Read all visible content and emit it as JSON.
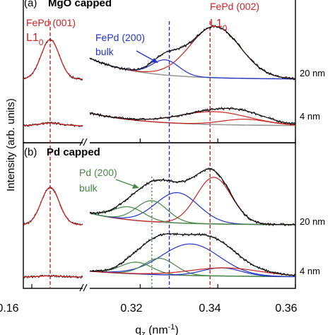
{
  "chart_data": {
    "type": "line",
    "xlabel_main": "q",
    "xlabel_sub": "z",
    "xlabel_unit_open": " (nm",
    "xlabel_unit_exp": "-1",
    "xlabel_unit_close": ")",
    "ylabel": "Intensity (arb. units)",
    "x_ticks": [
      "0.16",
      "0.32",
      "0.34",
      "0.36"
    ],
    "left_xlim": [
      0.157,
      0.178
    ],
    "right_xlim": [
      0.307,
      0.36
    ],
    "right_x_ticks": [
      0.32,
      0.34,
      0.36
    ],
    "guide_lines": [
      {
        "panel": "both",
        "x": 0.1665,
        "color": "#cc2222"
      },
      {
        "panel": "both",
        "x": 0.338,
        "color": "#cc2222"
      },
      {
        "panel": "both",
        "x": 0.3275,
        "color": "#2233cc"
      },
      {
        "panel": "b",
        "x": 0.323,
        "color": "#448844"
      }
    ],
    "panels": [
      {
        "label": "(a)",
        "title": "MgO capped",
        "annotations": {
          "fepd001_line1": "FePd (001)",
          "fepd001_line2": "L1",
          "fepd001_sub": "0",
          "fepd002_line1": "FePd (002)",
          "fepd002_line2": "L1",
          "fepd002_sub": "0",
          "fepd200_line1": "FePd (200)",
          "fepd200_line2": "bulk"
        },
        "thickness_labels": [
          "20 nm",
          "4 nm"
        ],
        "traces": [
          {
            "name": "20 nm",
            "offset": 1.0,
            "left_peak": {
              "center": 0.1665,
              "height": 1.7,
              "width": 0.0032
            },
            "right_peaks": [
              {
                "color": "#cc2222",
                "center": 0.3393,
                "height": 2.2,
                "width": 0.0065
              },
              {
                "color": "#2233cc",
                "center": 0.3265,
                "height": 0.65,
                "width": 0.0035
              }
            ],
            "background": {
              "start": 0.9,
              "decay": 0.012
            }
          },
          {
            "name": "4 nm",
            "offset": 0.0,
            "left_peak": {
              "center": 0.1665,
              "height": 0.12,
              "width": 0.004
            },
            "right_peaks": [
              {
                "color": "#cc2222",
                "center": 0.339,
                "height": 0.55,
                "width": 0.009
              },
              {
                "color": "#cc2222",
                "center": 0.347,
                "height": 0.25,
                "width": 0.006
              }
            ],
            "background": {
              "start": 0.55,
              "decay": 0.014
            }
          }
        ]
      },
      {
        "label": "(b)",
        "title": "Pd capped",
        "annotations": {
          "pd200_line1": "Pd (200)",
          "pd200_line2": "bulk"
        },
        "thickness_labels": [
          "20 nm",
          "4 nm"
        ],
        "traces": [
          {
            "name": "20 nm",
            "offset": 1.0,
            "left_peak": {
              "center": 0.1665,
              "height": 1.6,
              "width": 0.0032
            },
            "right_peaks": [
              {
                "color": "#cc2222",
                "center": 0.339,
                "height": 2.0,
                "width": 0.0045
              },
              {
                "color": "#2233cc",
                "center": 0.3295,
                "height": 1.3,
                "width": 0.0055
              },
              {
                "color": "#448844",
                "center": 0.323,
                "height": 0.9,
                "width": 0.004
              },
              {
                "color": "#448844",
                "center": 0.317,
                "height": 0.55,
                "width": 0.004
              }
            ],
            "background": {
              "start": 0.5,
              "decay": 0.012
            }
          },
          {
            "name": "4 nm",
            "offset": 0.0,
            "left_peak": {
              "center": 0.1665,
              "height": 0.05,
              "width": 0.004
            },
            "right_peaks": [
              {
                "color": "#2233cc",
                "center": 0.333,
                "height": 1.35,
                "width": 0.0075
              },
              {
                "color": "#448844",
                "center": 0.325,
                "height": 0.7,
                "width": 0.004
              },
              {
                "color": "#448844",
                "center": 0.319,
                "height": 0.5,
                "width": 0.004
              },
              {
                "color": "#2233cc",
                "center": 0.341,
                "height": 0.35,
                "width": 0.005
              },
              {
                "color": "#cc2222",
                "center": 0.342,
                "height": 0.35,
                "width": 0.009
              }
            ],
            "background": {
              "start": 0.25,
              "decay": 0.02
            }
          }
        ]
      }
    ],
    "colors": {
      "data": "#111111",
      "fit_red": "#cc2222",
      "fit_blue": "#2233cc",
      "fit_green": "#448844",
      "background": "#999999"
    }
  }
}
